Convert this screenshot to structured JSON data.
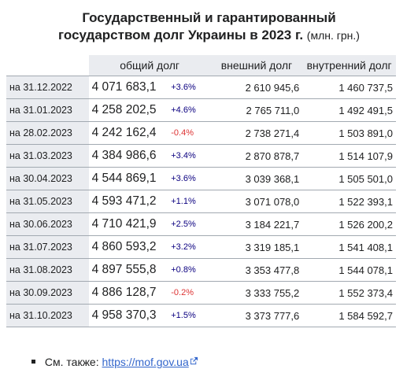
{
  "title": {
    "line1": "Государственный и гарантированный",
    "line2": "государством долг Украины в 2023 г.",
    "unit": "(млн. грн.)"
  },
  "table": {
    "headers": {
      "total": "общий долг",
      "external": "внешний долг",
      "internal": "внутренний долг"
    },
    "rows": [
      {
        "date": "на 31.12.2022",
        "total": "4 071 683,1",
        "change": "+3.6%",
        "trend": "up",
        "external": "2 610 945,6",
        "internal": "1 460 737,5"
      },
      {
        "date": "на 31.01.2023",
        "total": "4 258 202,5",
        "change": "+4.6%",
        "trend": "up",
        "external": "2 765 711,0",
        "internal": "1 492 491,5"
      },
      {
        "date": "на 28.02.2023",
        "total": "4 242 162,4",
        "change": "-0.4%",
        "trend": "down",
        "external": "2 738 271,4",
        "internal": "1 503 891,0"
      },
      {
        "date": "на 31.03.2023",
        "total": "4 384 986,6",
        "change": "+3.4%",
        "trend": "up",
        "external": "2 870 878,7",
        "internal": "1 514 107,9"
      },
      {
        "date": "на 30.04.2023",
        "total": "4 544 869,1",
        "change": "+3.6%",
        "trend": "up",
        "external": "3 039 368,1",
        "internal": "1 505 501,0"
      },
      {
        "date": "на 31.05.2023",
        "total": "4 593 471,2",
        "change": "+1.1%",
        "trend": "up",
        "external": "3 071 078,0",
        "internal": "1 522 393,1"
      },
      {
        "date": "на 30.06.2023",
        "total": "4 710 421,9",
        "change": "+2.5%",
        "trend": "up",
        "external": "3 184 221,7",
        "internal": "1 526 200,2"
      },
      {
        "date": "на 31.07.2023",
        "total": "4 860 593,2",
        "change": "+3.2%",
        "trend": "up",
        "external": "3 319 185,1",
        "internal": "1 541 408,1"
      },
      {
        "date": "на 31.08.2023",
        "total": "4 897 555,8",
        "change": "+0.8%",
        "trend": "up",
        "external": "3 353 477,8",
        "internal": "1 544 078,1"
      },
      {
        "date": "на 30.09.2023",
        "total": "4 886 128,7",
        "change": "-0.2%",
        "trend": "down",
        "external": "3 333 755,2",
        "internal": "1 552 373,4"
      },
      {
        "date": "на 31.10.2023",
        "total": "4 958 370,3",
        "change": "+1.5%",
        "trend": "up",
        "external": "3 373 777,6",
        "internal": "1 584 592,7"
      }
    ]
  },
  "see_also": {
    "label": "См. также:",
    "link_text": "https://mof.gov.ua",
    "link_icon": "external-link-icon"
  },
  "colors": {
    "increase": "#0b0080",
    "decrease": "#dd3333",
    "link": "#3366cc",
    "header_bg": "#eaecf0"
  }
}
